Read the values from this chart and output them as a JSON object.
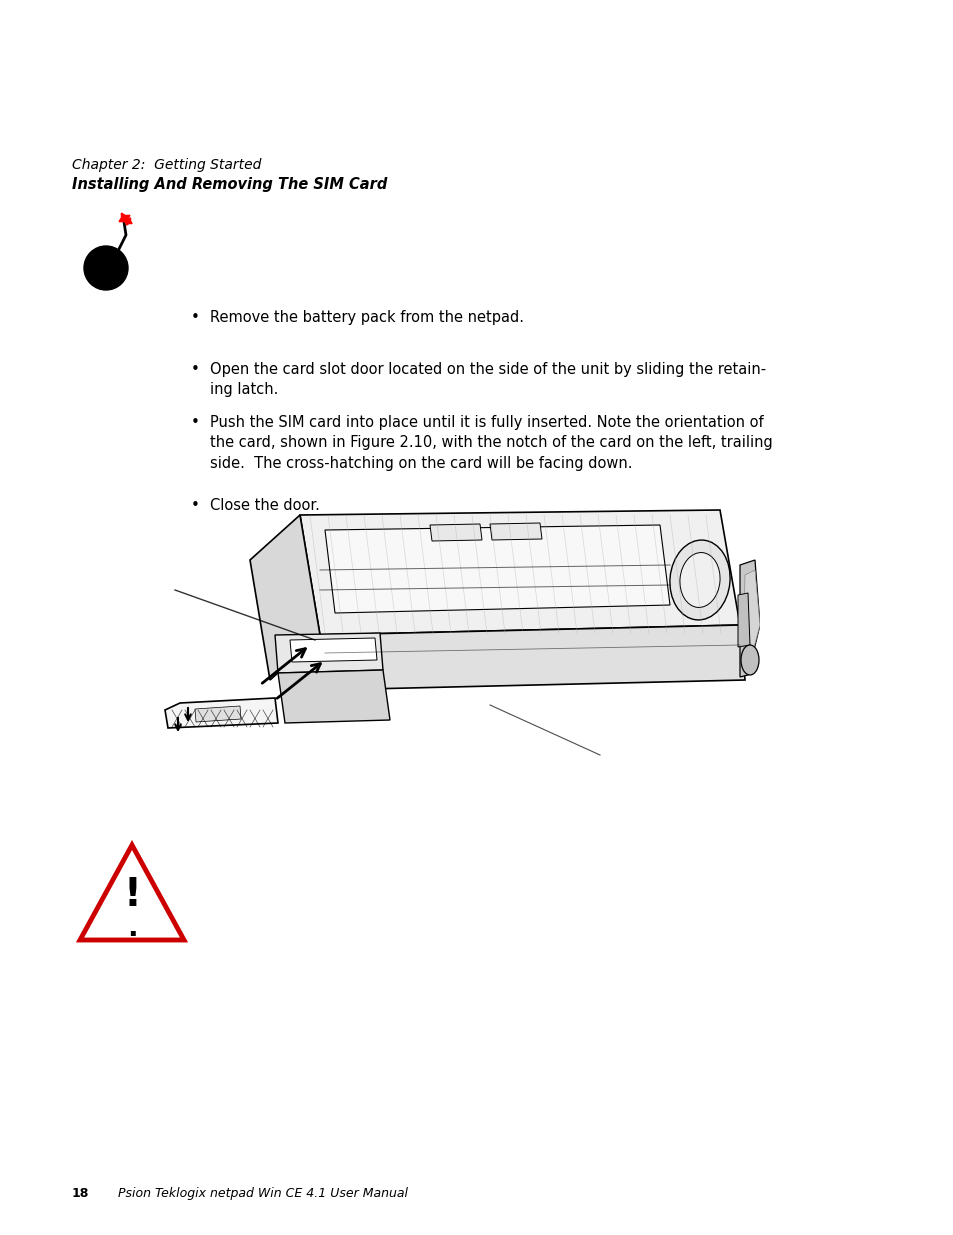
{
  "background_color": "#ffffff",
  "page_width": 9.54,
  "page_height": 12.35,
  "dpi": 100,
  "header_line1": "Chapter 2:  Getting Started",
  "header_line2": "Installing And Removing The SIM Card",
  "bullet_texts": [
    "Remove the battery pack from the netpad.",
    "Open the card slot door located on the side of the unit by sliding the retain-\ning latch.",
    "Push the SIM card into place until it is fully inserted. Note the orientation of\nthe card, shown in Figure 2.10, with the notch of the card on the left, trailing\nside.  The cross-hatching on the card will be facing down.",
    "Close the door."
  ],
  "bullet_fontsize": 10.5,
  "footer_page_num": "18",
  "footer_text": "Psion Teklogix netpad Win CE 4.1 User Manual",
  "footer_fontsize": 9,
  "text_color": "#000000",
  "warn_triangle_color": "#cc0000"
}
